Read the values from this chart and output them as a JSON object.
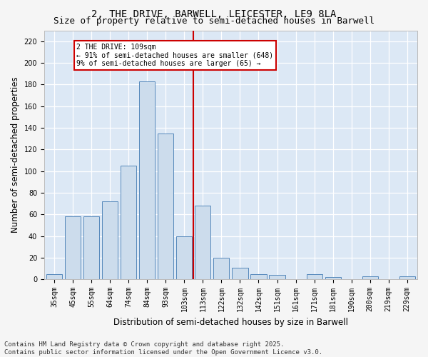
{
  "title1": "2, THE DRIVE, BARWELL, LEICESTER, LE9 8LA",
  "title2": "Size of property relative to semi-detached houses in Barwell",
  "xlabel": "Distribution of semi-detached houses by size in Barwell",
  "ylabel": "Number of semi-detached properties",
  "categories": [
    "35sqm",
    "45sqm",
    "55sqm",
    "64sqm",
    "74sqm",
    "84sqm",
    "93sqm",
    "103sqm",
    "113sqm",
    "122sqm",
    "132sqm",
    "142sqm",
    "151sqm",
    "161sqm",
    "171sqm",
    "181sqm",
    "190sqm",
    "200sqm",
    "219sqm",
    "229sqm"
  ],
  "values": [
    5,
    58,
    58,
    72,
    105,
    183,
    135,
    40,
    68,
    20,
    11,
    5,
    4,
    0,
    5,
    2,
    0,
    3,
    0,
    3
  ],
  "bar_color": "#ccdcec",
  "bar_edge_color": "#5588bb",
  "vline_index": 8.0,
  "vline_color": "#cc0000",
  "annotation_text": "2 THE DRIVE: 109sqm\n← 91% of semi-detached houses are smaller (648)\n9% of semi-detached houses are larger (65) →",
  "annotation_box_color": "#cc0000",
  "annotation_fill": "#ffffff",
  "ylim": [
    0,
    230
  ],
  "yticks": [
    0,
    20,
    40,
    60,
    80,
    100,
    120,
    140,
    160,
    180,
    200,
    220
  ],
  "bg_color": "#dce8f5",
  "grid_color": "#ffffff",
  "footer": "Contains HM Land Registry data © Crown copyright and database right 2025.\nContains public sector information licensed under the Open Government Licence v3.0.",
  "title1_fontsize": 10,
  "title2_fontsize": 9,
  "axis_label_fontsize": 8.5,
  "tick_fontsize": 7,
  "footer_fontsize": 6.5,
  "fig_bg": "#f5f5f5"
}
